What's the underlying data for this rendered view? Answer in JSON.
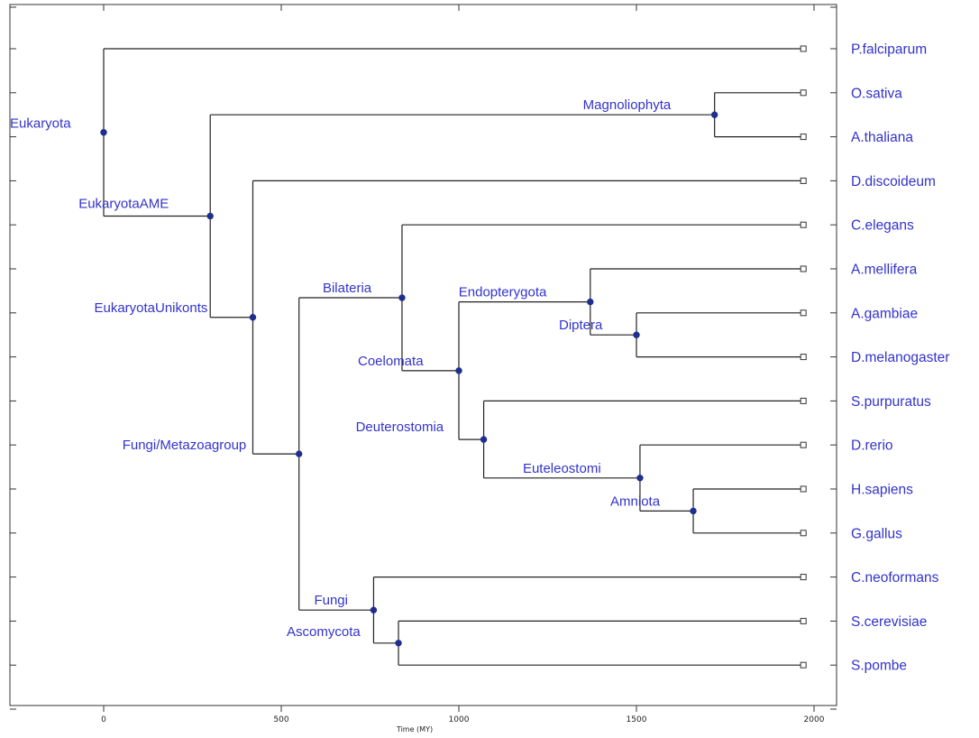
{
  "axis": {
    "title": "Time (MY)",
    "range": [
      -260,
      2060
    ],
    "ticks": [
      0,
      500,
      1000,
      1500,
      2000
    ]
  },
  "leaves": [
    {
      "name": "P.falciparum"
    },
    {
      "name": "O.sativa"
    },
    {
      "name": "A.thaliana"
    },
    {
      "name": "D.discoideum"
    },
    {
      "name": "C.elegans"
    },
    {
      "name": "A.mellifera"
    },
    {
      "name": "A.gambiae"
    },
    {
      "name": "D.melanogaster"
    },
    {
      "name": "S.purpuratus"
    },
    {
      "name": "D.rerio"
    },
    {
      "name": "H.sapiens"
    },
    {
      "name": "G.gallus"
    },
    {
      "name": "C.neoformans"
    },
    {
      "name": "S.cerevisiae"
    },
    {
      "name": "S.pombe"
    }
  ],
  "leaf_time": 1970,
  "clades": [
    {
      "id": "Eukaryota",
      "name": "Eukaryota",
      "time": 0,
      "children": [
        "L0",
        "EukaryotaAME"
      ]
    },
    {
      "id": "EukaryotaAME",
      "name": "EukaryotaAME",
      "time": 300,
      "children": [
        "Magnoliophyta",
        "EukaryotaUnikonts"
      ]
    },
    {
      "id": "Magnoliophyta",
      "name": "Magnoliophyta",
      "time": 1720,
      "children": [
        "L1",
        "L2"
      ]
    },
    {
      "id": "EukaryotaUnikonts",
      "name": "EukaryotaUnikonts",
      "time": 420,
      "children": [
        "L3",
        "FungiMetazoa"
      ]
    },
    {
      "id": "FungiMetazoa",
      "name": "Fungi/Metazoagroup",
      "time": 550,
      "children": [
        "Bilateria",
        "Fungi"
      ]
    },
    {
      "id": "Bilateria",
      "name": "Bilateria",
      "time": 840,
      "children": [
        "L4",
        "Coelomata"
      ]
    },
    {
      "id": "Coelomata",
      "name": "Coelomata",
      "time": 1000,
      "children": [
        "Endopterygota",
        "Deuterostomia"
      ]
    },
    {
      "id": "Endopterygota",
      "name": "Endopterygota",
      "time": 1370,
      "children": [
        "L5",
        "Diptera"
      ]
    },
    {
      "id": "Diptera",
      "name": "Diptera",
      "time": 1500,
      "children": [
        "L6",
        "L7"
      ]
    },
    {
      "id": "Deuterostomia",
      "name": "Deuterostomia",
      "time": 1070,
      "children": [
        "L8",
        "Euteleostomi"
      ]
    },
    {
      "id": "Euteleostomi",
      "name": "Euteleostomi",
      "time": 1510,
      "children": [
        "L9",
        "Amniota"
      ]
    },
    {
      "id": "Amniota",
      "name": "Amniota",
      "time": 1660,
      "children": [
        "L10",
        "L11"
      ]
    },
    {
      "id": "Fungi",
      "name": "Fungi",
      "time": 760,
      "children": [
        "L12",
        "Ascomycota"
      ]
    },
    {
      "id": "Ascomycota",
      "name": "Ascomycota",
      "time": 830,
      "children": [
        "L13",
        "L14"
      ]
    }
  ]
}
